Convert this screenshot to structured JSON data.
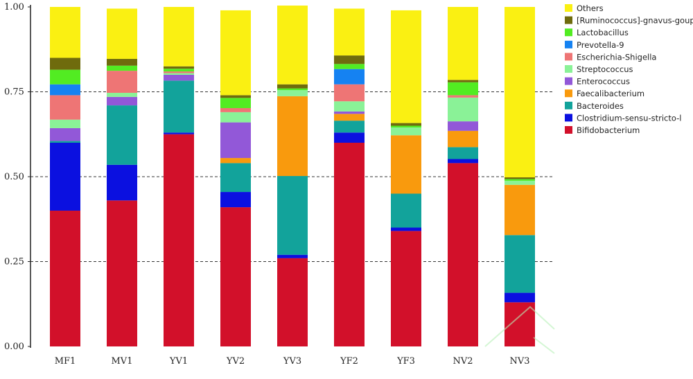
{
  "chart_data": {
    "type": "bar",
    "stacked": true,
    "title": "",
    "xlabel": "",
    "ylabel": "",
    "ylim": [
      0,
      1
    ],
    "yticks": [
      "0.00",
      "0.25",
      "0.50",
      "0.75",
      "1.00"
    ],
    "grid": "dashed horizontal at 0.25, 0.50, 0.75",
    "legend_position": "right",
    "categories": [
      "MF1",
      "MV1",
      "YV1",
      "YV2",
      "YV3",
      "YF2",
      "YF3",
      "NV2",
      "NV3"
    ],
    "series": [
      {
        "name": "Bifidobacterium",
        "color": "#d2102a",
        "values": [
          0.4,
          0.43,
          0.625,
          0.41,
          0.26,
          0.6,
          0.34,
          0.54,
          0.13
        ]
      },
      {
        "name": "Clostridium-sensu-stricto-l",
        "color": "#0b10e0",
        "values": [
          0.2,
          0.105,
          0.005,
          0.045,
          0.01,
          0.03,
          0.01,
          0.012,
          0.028
        ]
      },
      {
        "name": "Bacteroides",
        "color": "#12a39b",
        "values": [
          0.005,
          0.175,
          0.153,
          0.085,
          0.232,
          0.035,
          0.1,
          0.035,
          0.17
        ]
      },
      {
        "name": "Faecalibacterium",
        "color": "#f99a0d",
        "values": [
          0.0,
          0.0,
          0.0,
          0.015,
          0.235,
          0.02,
          0.172,
          0.048,
          0.148
        ]
      },
      {
        "name": "Enterococcus",
        "color": "#9258d8",
        "values": [
          0.038,
          0.025,
          0.017,
          0.105,
          0.0,
          0.007,
          0.0,
          0.028,
          0.0
        ]
      },
      {
        "name": "Streptococcus",
        "color": "#8af297",
        "values": [
          0.025,
          0.012,
          0.005,
          0.03,
          0.018,
          0.03,
          0.023,
          0.07,
          0.012
        ]
      },
      {
        "name": "Escherichia-Shigella",
        "color": "#ee7575",
        "values": [
          0.072,
          0.065,
          0.005,
          0.012,
          0.0,
          0.05,
          0.0,
          0.007,
          0.0
        ]
      },
      {
        "name": "Prevotella-9",
        "color": "#1582f2",
        "values": [
          0.032,
          0.0,
          0.0,
          0.0,
          0.0,
          0.045,
          0.0,
          0.0,
          0.0
        ]
      },
      {
        "name": "Lactobacillus",
        "color": "#52ec22",
        "values": [
          0.043,
          0.015,
          0.008,
          0.03,
          0.005,
          0.015,
          0.005,
          0.038,
          0.005
        ]
      },
      {
        "name": "[Ruminococcus]-gnavus-goup",
        "color": "#6f6b0d",
        "values": [
          0.035,
          0.02,
          0.007,
          0.008,
          0.012,
          0.025,
          0.008,
          0.007,
          0.005
        ]
      },
      {
        "name": "Others",
        "color": "#faf012",
        "values": [
          0.15,
          0.148,
          0.175,
          0.25,
          0.232,
          0.138,
          0.332,
          0.215,
          0.502
        ]
      }
    ]
  }
}
